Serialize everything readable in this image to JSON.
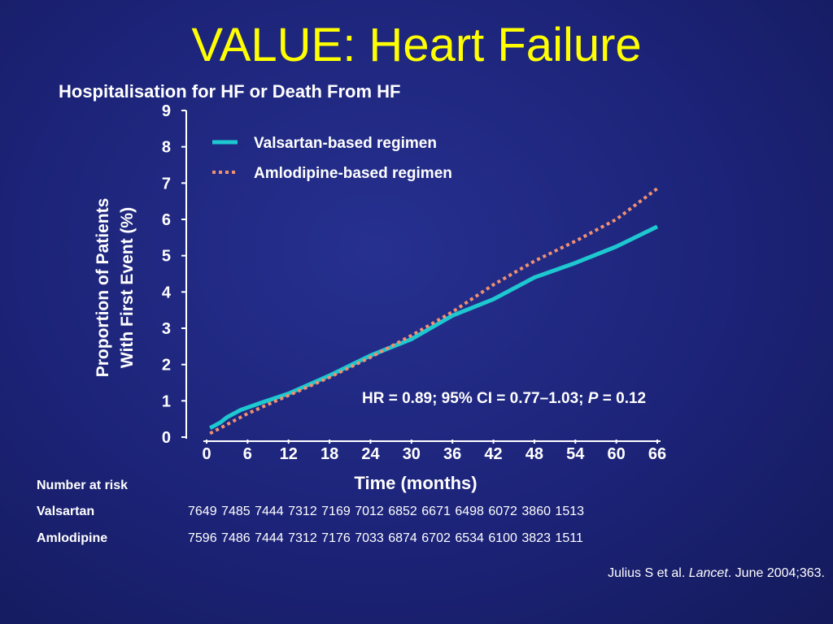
{
  "slide": {
    "title": "VALUE: Heart Failure",
    "subtitle": "Hospitalisation for HF or Death From HF"
  },
  "colors": {
    "background": "#1c2378",
    "title": "#ffff00",
    "valsartan": "#1ec8d0",
    "amlodipine": "#f09070"
  },
  "chart_data": {
    "type": "line",
    "title": "Hospitalisation for HF or Death From HF",
    "xlabel": "Time (months)",
    "ylabel_line1": "Proportion of Patients",
    "ylabel_line2": "With First Event (%)",
    "xlim": [
      0,
      66
    ],
    "ylim": [
      0,
      9
    ],
    "x_ticks": [
      0,
      6,
      12,
      18,
      24,
      30,
      36,
      42,
      48,
      54,
      60,
      66
    ],
    "y_ticks": [
      0,
      1,
      2,
      3,
      4,
      5,
      6,
      7,
      8,
      9
    ],
    "legend_position": "top-left",
    "series": [
      {
        "name": "Valsartan-based regimen",
        "style": "solid",
        "color": "#1ec8d0",
        "points": [
          [
            0.5,
            0.25
          ],
          [
            2,
            0.4
          ],
          [
            3,
            0.55
          ],
          [
            5,
            0.75
          ],
          [
            8,
            0.95
          ],
          [
            12,
            1.2
          ],
          [
            18,
            1.7
          ],
          [
            24,
            2.25
          ],
          [
            30,
            2.7
          ],
          [
            36,
            3.35
          ],
          [
            42,
            3.8
          ],
          [
            48,
            4.4
          ],
          [
            54,
            4.8
          ],
          [
            60,
            5.25
          ],
          [
            66,
            5.8
          ]
        ]
      },
      {
        "name": "Amlodipine-based regimen",
        "style": "dotted",
        "color": "#f09070",
        "points": [
          [
            0.5,
            0.1
          ],
          [
            3,
            0.35
          ],
          [
            6,
            0.65
          ],
          [
            12,
            1.15
          ],
          [
            18,
            1.65
          ],
          [
            24,
            2.2
          ],
          [
            30,
            2.8
          ],
          [
            36,
            3.45
          ],
          [
            42,
            4.2
          ],
          [
            48,
            4.85
          ],
          [
            54,
            5.4
          ],
          [
            60,
            6.0
          ],
          [
            66,
            6.85
          ]
        ]
      }
    ],
    "annotation": {
      "prefix": "HR = 0.89; 95% CI = 0.77–1.03; ",
      "p_label": "P",
      "suffix": " = 0.12"
    }
  },
  "number_at_risk": {
    "header": "Number at risk",
    "rows": [
      {
        "label": "Valsartan",
        "values": "7649 7485 7444 7312 7169 7012 6852 6671 6498 6072 3860 1513"
      },
      {
        "label": "Amlodipine",
        "values": "7596 7486 7444 7312 7176 7033 6874 6702 6534 6100 3823 1511"
      }
    ]
  },
  "citation": {
    "authors": "Julius S et al. ",
    "journal": "Lancet",
    "details": ". June 2004;363."
  }
}
